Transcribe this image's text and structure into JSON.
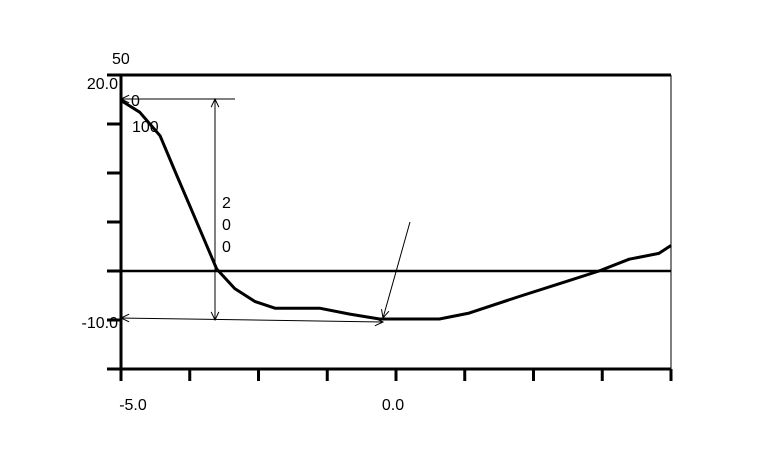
{
  "chart_data": {
    "type": "line",
    "title": "",
    "xlabel": "",
    "ylabel": "",
    "xlim": [
      -5.0,
      5.0
    ],
    "ylim": [
      -10.0,
      20.0
    ],
    "x_tick_step": 1.25,
    "y_tick_step": 5,
    "x_tick_labels": [
      {
        "value": -5.0,
        "text": "-5.0"
      },
      {
        "value": 0.0,
        "text": "0.0"
      }
    ],
    "y_tick_labels": [
      {
        "value": 20.0,
        "text": "20.0"
      },
      {
        "value": -10.0,
        "text": "-10.0"
      }
    ],
    "grid": false,
    "reference_line_y": 0,
    "series": [
      {
        "color": "#000000",
        "x": [
          -5.0,
          -4.66,
          -4.29,
          -4.02,
          -3.75,
          -3.48,
          -3.26,
          -2.93,
          -2.57,
          -2.2,
          -1.39,
          -0.84,
          -0.3,
          0.79,
          1.33,
          2.24,
          2.97,
          3.69,
          4.24,
          4.78,
          5.0
        ],
        "y": [
          17.4,
          16.2,
          13.8,
          10.2,
          6.65,
          3.1,
          0.2,
          -1.8,
          -3.1,
          -3.8,
          -3.8,
          -4.4,
          -4.9,
          -4.9,
          -4.3,
          -2.6,
          -1.3,
          0.0,
          1.2,
          1.8,
          2.6
        ]
      }
    ],
    "annotations": {
      "top_label": "50",
      "start_label": "0",
      "second_label": "100",
      "vertical_label": [
        "2",
        "0",
        "0"
      ]
    }
  }
}
